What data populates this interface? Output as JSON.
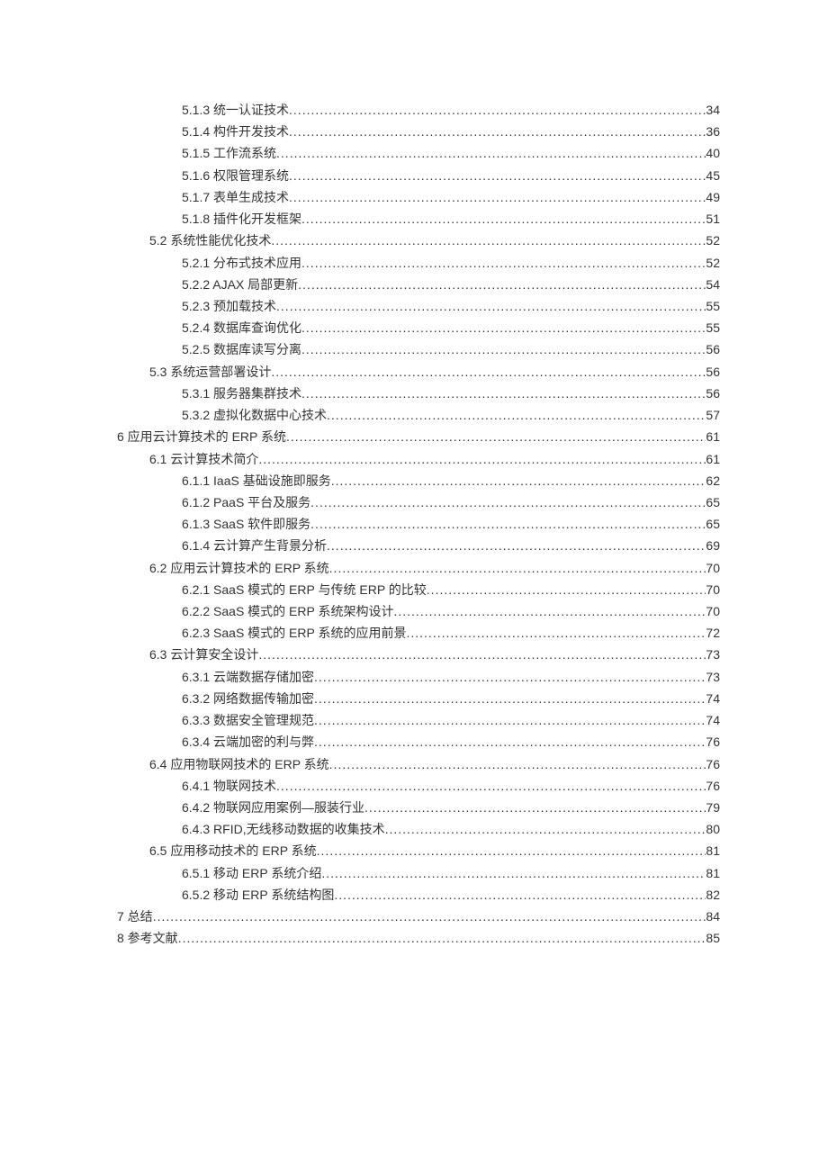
{
  "toc": [
    {
      "level": 3,
      "label": "5.1.3  统一认证技术 ",
      "page": "34"
    },
    {
      "level": 3,
      "label": "5.1.4  构件开发技术 ",
      "page": "36"
    },
    {
      "level": 3,
      "label": "5.1.5  工作流系统 ",
      "page": "40"
    },
    {
      "level": 3,
      "label": "5.1.6  权限管理系统 ",
      "page": "45"
    },
    {
      "level": 3,
      "label": "5.1.7  表单生成技术 ",
      "page": "49"
    },
    {
      "level": 3,
      "label": "5.1.8  插件化开发框架 ",
      "page": "51"
    },
    {
      "level": 2,
      "label": "5.2  系统性能优化技术 ",
      "page": "52"
    },
    {
      "level": 3,
      "label": "5.2.1  分布式技术应用 ",
      "page": "52"
    },
    {
      "level": 3,
      "label": "5.2.2 AJAX 局部更新 ",
      "page": "54"
    },
    {
      "level": 3,
      "label": "5.2.3  预加载技术 ",
      "page": "55"
    },
    {
      "level": 3,
      "label": "5.2.4  数据库查询优化 ",
      "page": "55"
    },
    {
      "level": 3,
      "label": "5.2.5  数据库读写分离 ",
      "page": "56"
    },
    {
      "level": 2,
      "label": "5.3  系统运营部署设计 ",
      "page": "56"
    },
    {
      "level": 3,
      "label": "5.3.1  服务器集群技术 ",
      "page": "56"
    },
    {
      "level": 3,
      "label": "5.3.2  虚拟化数据中心技术 ",
      "page": "57"
    },
    {
      "level": 1,
      "label": "6  应用云计算技术的 ERP 系统 ",
      "page": "61"
    },
    {
      "level": 2,
      "label": "6.1  云计算技术简介 ",
      "page": "61"
    },
    {
      "level": 3,
      "label": "6.1.1 IaaS 基础设施即服务 ",
      "page": "62"
    },
    {
      "level": 3,
      "label": "6.1.2 PaaS 平台及服务 ",
      "page": "65"
    },
    {
      "level": 3,
      "label": "6.1.3 SaaS 软件即服务 ",
      "page": "65"
    },
    {
      "level": 3,
      "label": "6.1.4  云计算产生背景分析 ",
      "page": "69"
    },
    {
      "level": 2,
      "label": "6.2  应用云计算技术的 ERP 系统 ",
      "page": "70"
    },
    {
      "level": 3,
      "label": "6.2.1 SaaS 模式的 ERP 与传统 ERP 的比较 ",
      "page": "70"
    },
    {
      "level": 3,
      "label": "6.2.2 SaaS 模式的 ERP 系统架构设计 ",
      "page": "70"
    },
    {
      "level": 3,
      "label": "6.2.3 SaaS 模式的 ERP 系统的应用前景 ",
      "page": "72"
    },
    {
      "level": 2,
      "label": "6.3  云计算安全设计 ",
      "page": "73"
    },
    {
      "level": 3,
      "label": "6.3.1  云端数据存储加密 ",
      "page": "73"
    },
    {
      "level": 3,
      "label": "6.3.2  网络数据传输加密 ",
      "page": "74"
    },
    {
      "level": 3,
      "label": "6.3.3  数据安全管理规范 ",
      "page": "74"
    },
    {
      "level": 3,
      "label": "6.3.4  云端加密的利与弊 ",
      "page": "76"
    },
    {
      "level": 2,
      "label": "6.4  应用物联网技术的 ERP 系统 ",
      "page": "76"
    },
    {
      "level": 3,
      "label": "6.4.1  物联网技术 ",
      "page": "76"
    },
    {
      "level": 3,
      "label": "6.4.2  物联网应用案例—服装行业 ",
      "page": "79"
    },
    {
      "level": 3,
      "label": "6.4.3 RFID,无线移动数据的收集技术 ",
      "page": "80"
    },
    {
      "level": 2,
      "label": "6.5  应用移动技术的 ERP 系统 ",
      "page": "81"
    },
    {
      "level": 3,
      "label": "6.5.1  移动 ERP 系统介绍 ",
      "page": "81"
    },
    {
      "level": 3,
      "label": "6.5.2  移动 ERP 系统结构图 ",
      "page": "82"
    },
    {
      "level": 1,
      "label": "7  总结",
      "page": "84"
    },
    {
      "level": 1,
      "label": "8  参考文献",
      "page": "85"
    }
  ]
}
